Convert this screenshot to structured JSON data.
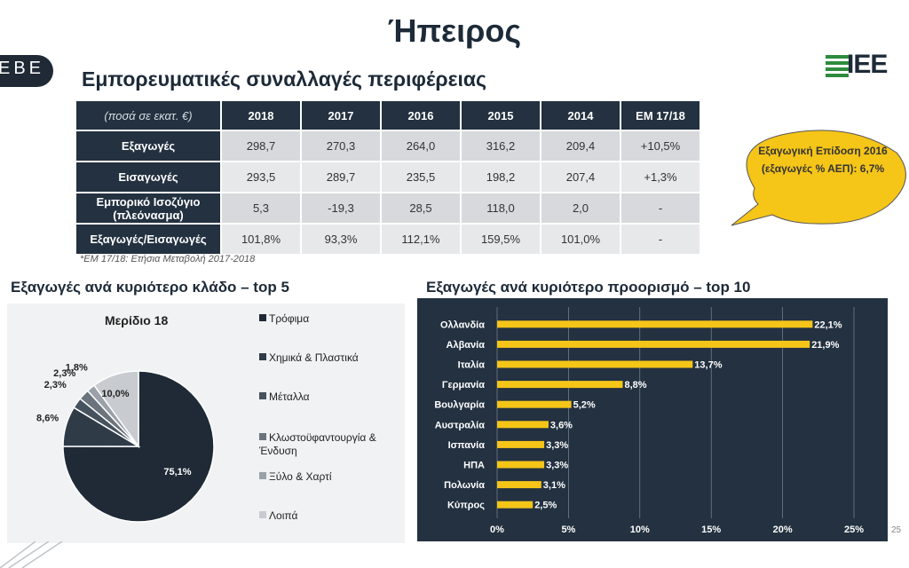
{
  "slide": {
    "title": "Ήπειρος",
    "section_title": "Εμπορευματικές συναλλαγές περιφέρειας",
    "left_logo": "EBE",
    "right_logo": "IEE",
    "page_number": "25"
  },
  "table": {
    "unit_label": "(ποσά σε εκατ. €)",
    "columns": [
      "2018",
      "2017",
      "2016",
      "2015",
      "2014",
      "ΕΜ 17/18"
    ],
    "rows": [
      {
        "label": "Εξαγωγές",
        "values": [
          "298,7",
          "270,3",
          "264,0",
          "316,2",
          "209,4",
          "+10,5%"
        ]
      },
      {
        "label": "Εισαγωγές",
        "values": [
          "293,5",
          "289,7",
          "235,5",
          "198,2",
          "207,4",
          "+1,3%"
        ]
      },
      {
        "label": "Εμπορικό Ισοζύγιο (πλεόνασμα)",
        "values": [
          "5,3",
          "-19,3",
          "28,5",
          "118,0",
          "2,0",
          "-"
        ]
      },
      {
        "label": "Εξαγωγές/Εισαγωγές",
        "values": [
          "101,8%",
          "93,3%",
          "112,1%",
          "159,5%",
          "101,0%",
          "-"
        ]
      }
    ],
    "footnote": "*ΕΜ 17/18: Ετήσια Μεταβολή 2017-2018"
  },
  "bubble": {
    "text": "Εξαγωγική Επίδοση 2016 (εξαγωγές % ΑΕΠ): 6,7%",
    "color": "#f5c518"
  },
  "chart_data": [
    {
      "type": "pie",
      "panel_title": "Εξαγωγές ανά κυριότερο κλάδο – top 5",
      "title": "Μερίδιο 18",
      "categories": [
        "Τρόφιμα",
        "Χημικά & Πλαστικά",
        "Μέταλλα",
        "Κλωστοϋφαντουργία & Ένδυση",
        "Ξύλο & Χαρτί",
        "Λοιπά"
      ],
      "values": [
        75.1,
        8.6,
        2.3,
        2.3,
        1.8,
        10.0
      ],
      "labels": [
        "75,1%",
        "8,6%",
        "2,3%",
        "2,3%",
        "1,8%",
        "10,0%"
      ],
      "colors": [
        "#1f2a36",
        "#2f3c48",
        "#46525d",
        "#6b747d",
        "#9aa1a8",
        "#c8ccd0"
      ],
      "legend": "right"
    },
    {
      "type": "bar",
      "orientation": "horizontal",
      "panel_title": "Εξαγωγές ανά κυριότερο προορισμό – top 10",
      "categories": [
        "Ολλανδία",
        "Αλβανία",
        "Ιταλία",
        "Γερμανία",
        "Βουλγαρία",
        "Αυστραλία",
        "Ισπανία",
        "ΗΠΑ",
        "Πολωνία",
        "Κύπρος"
      ],
      "values": [
        22.1,
        21.9,
        13.7,
        8.8,
        5.2,
        3.6,
        3.3,
        3.3,
        3.1,
        2.5
      ],
      "labels": [
        "22,1%",
        "21,9%",
        "13,7%",
        "8,8%",
        "5,2%",
        "3,6%",
        "3,3%",
        "3,3%",
        "3,1%",
        "2,5%"
      ],
      "xlim": [
        0,
        25
      ],
      "xticks": [
        "0%",
        "5%",
        "10%",
        "15%",
        "20%",
        "25%"
      ],
      "bar_color": "#f5c518",
      "grid": true
    }
  ]
}
